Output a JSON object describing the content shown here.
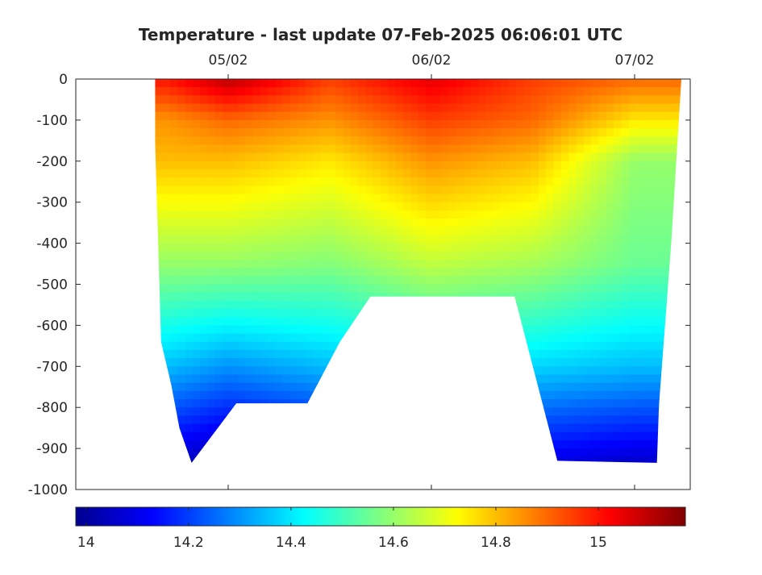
{
  "chart_data": {
    "type": "heatmap",
    "title": "Temperature - last update 07-Feb-2025 06:06:01 UTC",
    "xlabel": "",
    "ylabel": "",
    "x_ticks": [
      "05/02",
      "06/02",
      "07/02"
    ],
    "y_ticks": [
      0,
      -100,
      -200,
      -300,
      -400,
      -500,
      -600,
      -700,
      -800,
      -900,
      -1000
    ],
    "ylim": [
      -1000,
      0
    ],
    "colormap": "jet",
    "colorbar": {
      "orientation": "horizontal",
      "range": [
        13.98,
        15.17
      ],
      "ticks": [
        "14",
        "14.2",
        "14.4",
        "14.6",
        "14.8",
        "15"
      ]
    },
    "grid": false,
    "profiles_note_free": true,
    "depth_profile": [
      {
        "t": -0.3,
        "surface": [
          15.0,
          14.85,
          14.8
        ],
        "mid": 14.6,
        "deep": 14.35
      },
      {
        "t": 0.0,
        "surface": [
          15.1,
          14.9,
          14.8
        ],
        "mid": 14.6,
        "deep": 14.3
      },
      {
        "t": 0.5,
        "surface": [
          14.95,
          14.85,
          14.75
        ],
        "mid": 14.58,
        "deep": 14.35
      },
      {
        "t": 1.0,
        "surface": [
          15.05,
          14.95,
          14.85
        ],
        "mid": 14.65,
        "deep": 14.4
      },
      {
        "t": 1.5,
        "surface": [
          14.95,
          14.9,
          14.8
        ],
        "mid": 14.62,
        "deep": 14.38
      },
      {
        "t": 2.0,
        "surface": [
          14.9,
          14.75,
          14.6
        ],
        "mid": 14.55,
        "deep": 14.35
      }
    ],
    "seafloor": [
      {
        "t": -0.36,
        "depth": -150
      },
      {
        "t": -0.33,
        "depth": -640
      },
      {
        "t": -0.28,
        "depth": -745
      },
      {
        "t": -0.24,
        "depth": -850
      },
      {
        "t": -0.18,
        "depth": -935
      },
      {
        "t": 0.04,
        "depth": -790
      },
      {
        "t": 0.39,
        "depth": -790
      },
      {
        "t": 0.55,
        "depth": -640
      },
      {
        "t": 0.7,
        "depth": -530
      },
      {
        "t": 1.41,
        "depth": -530
      },
      {
        "t": 1.62,
        "depth": -930
      },
      {
        "t": 2.11,
        "depth": -935
      },
      {
        "t": 2.12,
        "depth": -795
      },
      {
        "t": 2.18,
        "depth": -400
      }
    ],
    "x_start": -0.36,
    "x_end": 2.23
  }
}
